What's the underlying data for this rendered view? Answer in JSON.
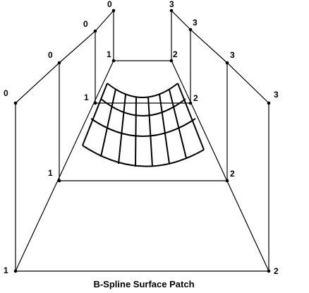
{
  "caption": "B-Spline Surface Patch",
  "colors": {
    "ink": "#000000",
    "background": "#ffffff"
  },
  "control_point_labels": {
    "row0": [
      "0",
      "0",
      "0",
      "0"
    ],
    "row1": [
      "1",
      "1",
      "1",
      "1"
    ],
    "row2": [
      "2",
      "2",
      "2",
      "2"
    ],
    "row3": [
      "3",
      "3",
      "3",
      "3"
    ]
  }
}
